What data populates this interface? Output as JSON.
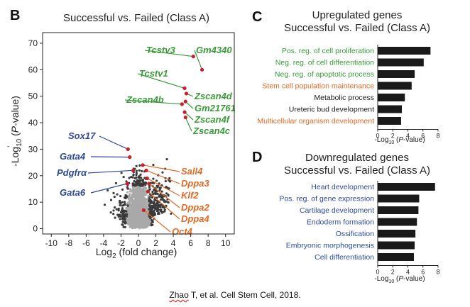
{
  "side_mark": "ˉ",
  "citation": {
    "author": "Zhao",
    "rest": " T, et al. Cell Stem Cell, 2018."
  },
  "colors": {
    "green": "#3a9a3a",
    "orange": "#e06a23",
    "blue": "#2d4b9a",
    "black": "#1a1a1a",
    "dark_point": "#3a3a3a",
    "light_point": "#a9a9a9",
    "red_point": "#c8202a"
  },
  "chart_data": [
    {
      "panel": "B",
      "type": "scatter",
      "title": "Successful vs. Failed (Class A)",
      "xlabel_parts": [
        "Log",
        "2",
        " (fold change)"
      ],
      "ylabel_parts": [
        "-Log",
        "10",
        " (",
        "P",
        "-value)"
      ],
      "xlim": [
        -11,
        11
      ],
      "ylim": [
        -2,
        74
      ],
      "xticks": [
        -10,
        -8,
        -6,
        -4,
        -2,
        0,
        2,
        4,
        6,
        8,
        10
      ],
      "yticks": [
        0,
        10,
        20,
        30,
        40,
        50,
        60,
        70
      ],
      "highlighted_genes": [
        {
          "name": "Tcstv3",
          "x": 6.3,
          "y": 65,
          "color": "green",
          "side": "right"
        },
        {
          "name": "Gm4340",
          "x": 7.3,
          "y": 60,
          "color": "green",
          "side": "right"
        },
        {
          "name": "Tcstv1",
          "x": 5.3,
          "y": 53,
          "color": "green",
          "side": "right"
        },
        {
          "name": "Zscan4b",
          "x": 5.0,
          "y": 47,
          "color": "green",
          "side": "right"
        },
        {
          "name": "Zscan4d",
          "x": 5.5,
          "y": 51,
          "color": "green",
          "side": "right"
        },
        {
          "name": "Gm21761",
          "x": 5.4,
          "y": 48,
          "color": "green",
          "side": "right"
        },
        {
          "name": "Zscan4f",
          "x": 5.3,
          "y": 44,
          "color": "green",
          "side": "right"
        },
        {
          "name": "Zscan4c",
          "x": 5.4,
          "y": 42,
          "color": "green",
          "side": "right"
        },
        {
          "name": "Sox17",
          "x": -1.2,
          "y": 30,
          "color": "blue",
          "side": "left"
        },
        {
          "name": "Gata4",
          "x": -1.0,
          "y": 27,
          "color": "blue",
          "side": "left"
        },
        {
          "name": "Pdgfrα",
          "x": -0.6,
          "y": 22,
          "color": "blue",
          "side": "left"
        },
        {
          "name": "Gata6",
          "x": -1.3,
          "y": 17,
          "color": "blue",
          "side": "left"
        },
        {
          "name": "Sall4",
          "x": 0.5,
          "y": 24,
          "color": "orange",
          "side": "right"
        },
        {
          "name": "Dppa3",
          "x": 0.9,
          "y": 22,
          "color": "orange",
          "side": "right"
        },
        {
          "name": "Klf2",
          "x": 1.0,
          "y": 19,
          "color": "orange",
          "side": "right"
        },
        {
          "name": "Dppa2",
          "x": 1.2,
          "y": 17,
          "color": "orange",
          "side": "right"
        },
        {
          "name": "Dppa4",
          "x": 1.1,
          "y": 14,
          "color": "orange",
          "side": "right"
        },
        {
          "name": "Oct4",
          "x": 0.6,
          "y": 7,
          "color": "orange",
          "side": "right"
        }
      ]
    },
    {
      "panel": "C",
      "type": "bar",
      "orientation": "horizontal",
      "title_lines": [
        "Upregulated genes",
        "Successful vs. Failed (Class A)"
      ],
      "xlabel_parts": [
        "-Log",
        "10",
        " (",
        "P",
        "-value)"
      ],
      "xlim": [
        0,
        8
      ],
      "xticks": [
        0,
        2,
        4,
        6,
        8
      ],
      "categories": [
        "Pos. reg. of cell proliferation",
        "Neg. reg. of cell differentiation",
        "Neg. reg. of apoptotic process",
        "Stem cell population maintenance",
        "Metabolic process",
        "Ureteric bud development",
        "Multicellular organism development"
      ],
      "label_colors": [
        "green",
        "green",
        "green",
        "orange",
        "black",
        "black",
        "orange"
      ],
      "values": [
        7.0,
        6.1,
        4.9,
        4.5,
        3.6,
        3.2,
        3.1
      ]
    },
    {
      "panel": "D",
      "type": "bar",
      "orientation": "horizontal",
      "title_lines": [
        "Downregulated genes",
        "Successful vs. Failed (Class A)"
      ],
      "xlabel_parts": [
        "-Log",
        "10",
        " (",
        "P",
        "-value)"
      ],
      "xlim": [
        0,
        8
      ],
      "xticks": [
        0,
        2,
        4,
        6,
        8
      ],
      "categories": [
        "Heart development",
        "Pos. reg. of gene expression",
        "Cartilage development",
        "Endoderm formation",
        "Ossification",
        "Embryonic morphogenesis",
        "Cell differentiation"
      ],
      "label_colors": [
        "blue",
        "blue",
        "blue",
        "blue",
        "blue",
        "blue",
        "blue"
      ],
      "values": [
        7.6,
        5.5,
        5.4,
        5.2,
        5.0,
        4.9,
        4.8
      ]
    }
  ]
}
